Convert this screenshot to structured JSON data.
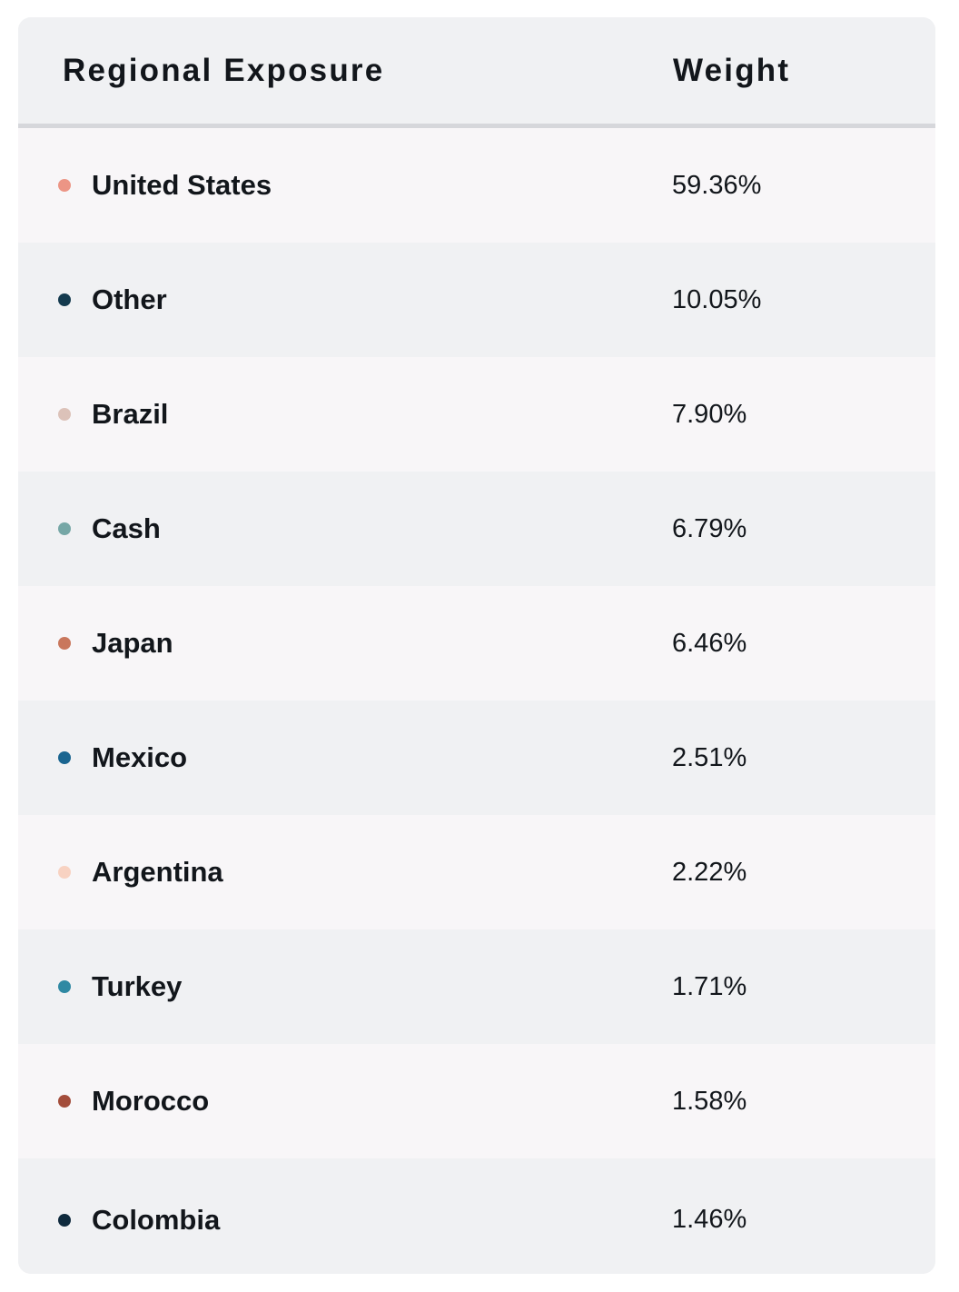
{
  "table": {
    "header": {
      "region": "Regional Exposure",
      "weight": "Weight"
    },
    "rows": [
      {
        "region": "United States",
        "weight": "59.36%",
        "color": "#ec9585"
      },
      {
        "region": "Other",
        "weight": "10.05%",
        "color": "#143a4e"
      },
      {
        "region": "Brazil",
        "weight": "7.90%",
        "color": "#dcc2b9"
      },
      {
        "region": "Cash",
        "weight": "6.79%",
        "color": "#76a7a6"
      },
      {
        "region": "Japan",
        "weight": "6.46%",
        "color": "#c9775d"
      },
      {
        "region": "Mexico",
        "weight": "2.51%",
        "color": "#1a6590"
      },
      {
        "region": "Argentina",
        "weight": "2.22%",
        "color": "#f8d2c2"
      },
      {
        "region": "Turkey",
        "weight": "1.71%",
        "color": "#2f89a3"
      },
      {
        "region": "Morocco",
        "weight": "1.58%",
        "color": "#a34d3b"
      },
      {
        "region": "Colombia",
        "weight": "1.46%",
        "color": "#0f2a3d"
      }
    ]
  }
}
